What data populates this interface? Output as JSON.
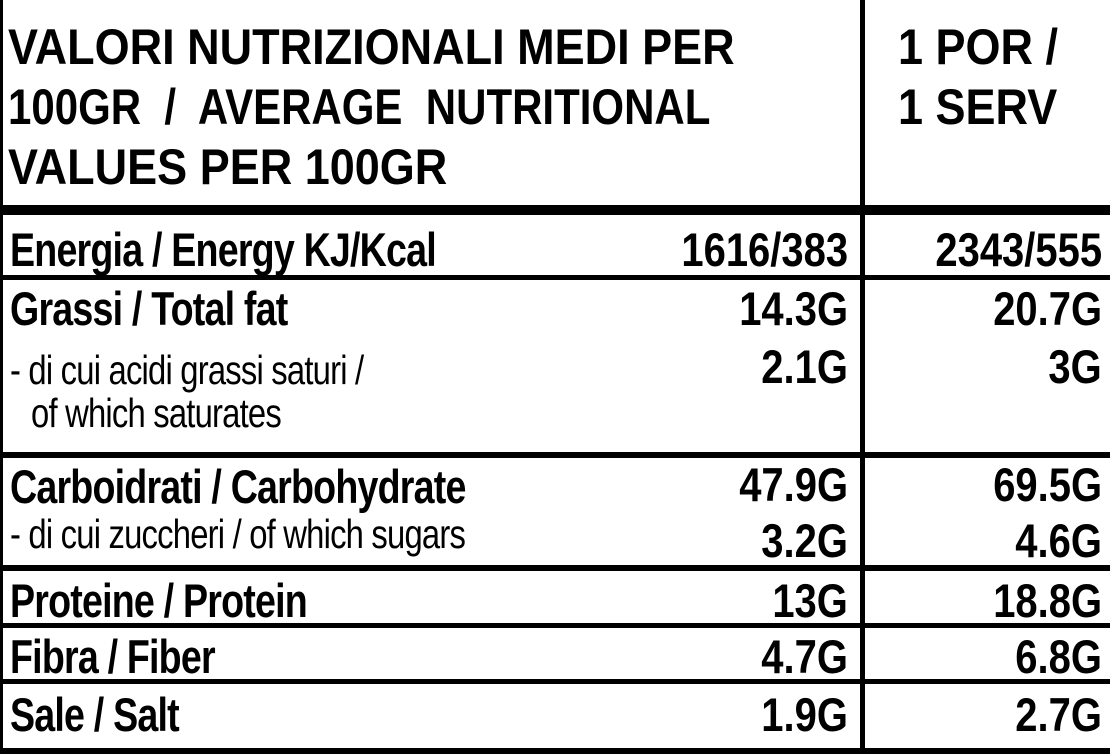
{
  "header": {
    "left_lines": [
      "VALORI NUTRIZIONALI MEDI PER",
      "100GR  /  AVERAGE  NUTRITIONAL",
      "VALUES PER 100GR"
    ],
    "right_lines": [
      "1 POR /",
      "1 SERV"
    ]
  },
  "rows": [
    {
      "label": "Energia / Energy KJ/Kcal",
      "per100": "1616/383",
      "serving": "2343/555"
    },
    {
      "label": "Grassi / Total fat",
      "per100": "14.3G",
      "serving": "20.7G"
    },
    {
      "label": "- di cui acidi grassi saturi /",
      "label2": "of which saturates",
      "per100": "2.1G",
      "serving": "3G"
    },
    {
      "label": "Carboidrati / Carbohydrate",
      "per100": "47.9G",
      "serving": "69.5G"
    },
    {
      "label": "- di cui zuccheri / of which sugars",
      "per100": "3.2G",
      "serving": "4.6G"
    },
    {
      "label": "Proteine / Protein",
      "per100": "13G",
      "serving": "18.8G"
    },
    {
      "label": "Fibra / Fiber",
      "per100": "4.7G",
      "serving": "6.8G"
    },
    {
      "label": "Sale / Salt",
      "per100": "1.9G",
      "serving": "2.7G"
    }
  ]
}
